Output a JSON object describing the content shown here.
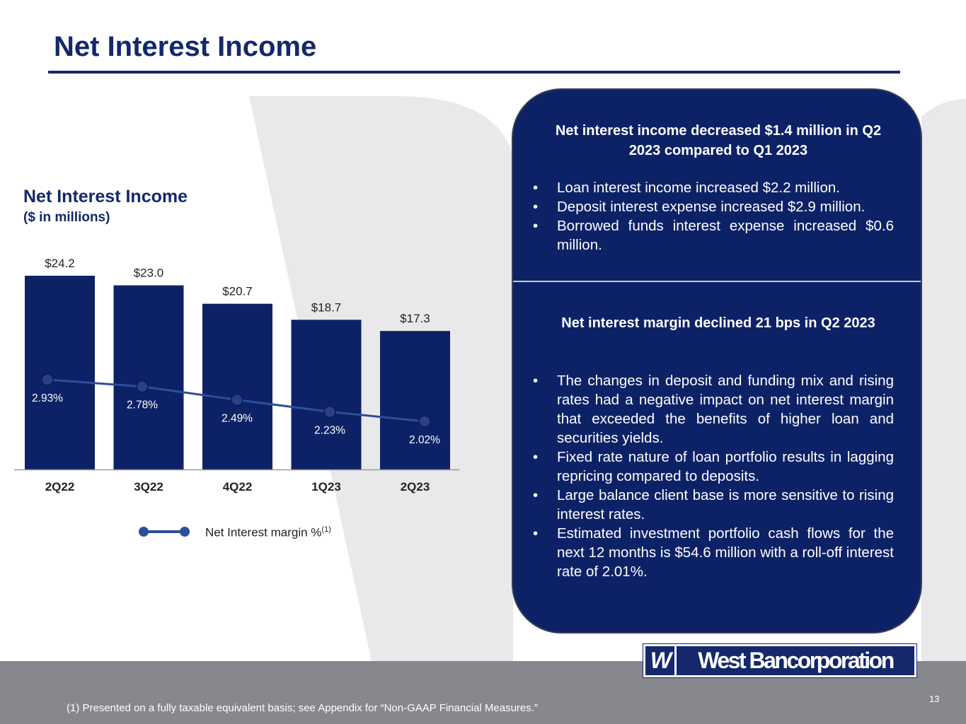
{
  "page": {
    "title": "Net Interest Income",
    "number": "13",
    "footnote": "(1) Presented on a fully taxable equivalent basis; see Appendix for “Non-GAAP Financial Measures.”"
  },
  "logo": {
    "mark": "W",
    "text": "West Bancorporation"
  },
  "colors": {
    "brand_navy": "#14286b",
    "bar_fill": "#0d2266",
    "line": "#2f4d9c",
    "marker": "#2a3f87",
    "footer_gray": "#87888d",
    "watermark": "#e9e9eb"
  },
  "chart_data": {
    "type": "bar",
    "title": "Net Interest Income",
    "subtitle": "($ in millions)",
    "categories": [
      "2Q22",
      "3Q22",
      "4Q22",
      "1Q23",
      "2Q23"
    ],
    "series": [
      {
        "name": "Net Interest Income",
        "values": [
          24.2,
          23.0,
          20.7,
          18.7,
          17.3
        ],
        "labels": [
          "$24.2",
          "$23.0",
          "$20.7",
          "$18.7",
          "$17.3"
        ]
      },
      {
        "name": "Net Interest margin %",
        "type": "line",
        "values": [
          2.93,
          2.78,
          2.49,
          2.23,
          2.02
        ],
        "labels": [
          "2.93%",
          "2.78%",
          "2.49%",
          "2.23%",
          "2.02%"
        ]
      }
    ],
    "legend": {
      "label": "Net Interest margin %",
      "superscript": "(1)",
      "position": "bottom"
    },
    "ylim": [
      0,
      24.2
    ],
    "grid": false
  },
  "summary": {
    "block1": {
      "heading": "Net interest income decreased $1.4 million in Q2 2023 compared to Q1 2023",
      "bullets": [
        "Loan interest income increased $2.2 million.",
        "Deposit interest expense increased $2.9 million.",
        "Borrowed funds interest expense increased $0.6 million."
      ]
    },
    "block2": {
      "heading": "Net interest margin declined 21 bps in Q2 2023",
      "bullets": [
        "The changes in deposit and funding mix and rising rates had a negative impact on net interest margin that exceeded the benefits of higher loan and securities yields.",
        "Fixed rate nature of loan portfolio results in lagging repricing compared to deposits.",
        "Large balance client base is more sensitive to rising interest rates.",
        "Estimated investment portfolio cash flows for the next 12 months is $54.6 million with a roll-off interest rate of 2.01%."
      ]
    }
  }
}
